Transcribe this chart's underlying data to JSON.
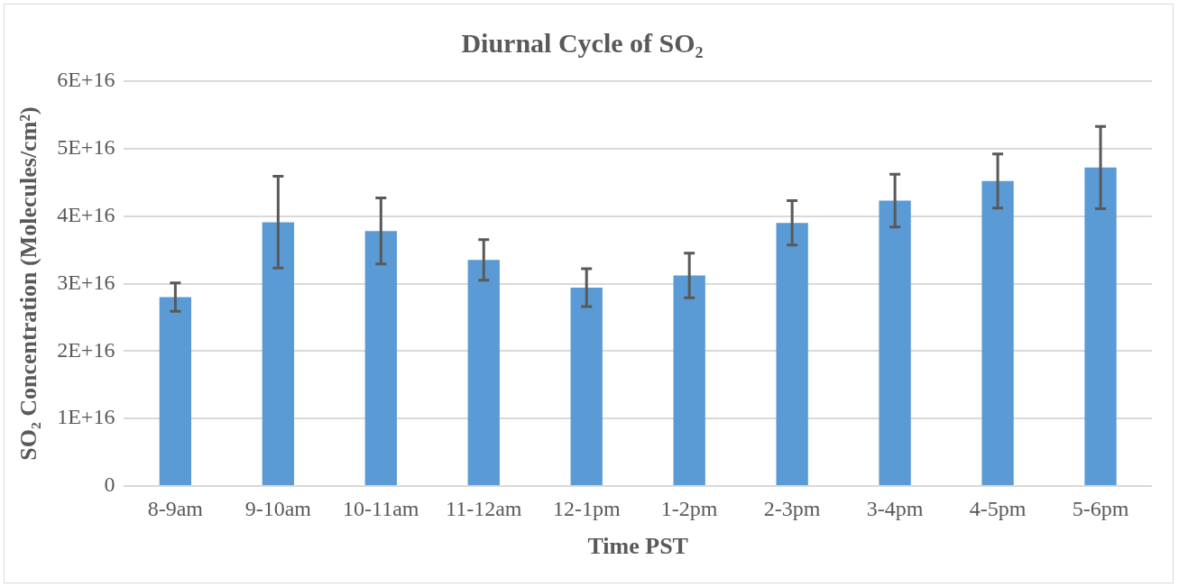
{
  "chart_data": {
    "type": "bar",
    "title": "Diurnal Cycle of SO₂",
    "xlabel": "Time PST",
    "ylabel": "SO₂ Concentration (Molecules/cm²)",
    "categories": [
      "8-9am",
      "9-10am",
      "10-11am",
      "11-12am",
      "12-1pm",
      "1-2pm",
      "2-3pm",
      "3-4pm",
      "4-5pm",
      "5-6pm"
    ],
    "values": [
      2.8e+16,
      3.91e+16,
      3.78e+16,
      3.35e+16,
      2.94e+16,
      3.12e+16,
      3.9e+16,
      4.23e+16,
      4.52e+16,
      4.72e+16
    ],
    "errors": [
      2100000000000000.0,
      6800000000000000.0,
      4900000000000000.0,
      3000000000000000.0,
      2800000000000000.0,
      3300000000000000.0,
      3300000000000000.0,
      3900000000000000.0,
      4000000000000000.0,
      6100000000000000.0
    ],
    "color": "#5b9bd5",
    "ylim": [
      0,
      6e+16
    ],
    "yticks": [
      0,
      {
        "value": 1e+16,
        "label": "1E+16"
      },
      {
        "value": 2e+16,
        "label": "2E+16"
      },
      {
        "value": 3e+16,
        "label": "3E+16"
      },
      {
        "value": 4e+16,
        "label": "4E+16"
      },
      {
        "value": 5e+16,
        "label": "5E+16"
      },
      {
        "value": 6e+16,
        "label": "6E+16"
      }
    ],
    "grid": "y"
  }
}
